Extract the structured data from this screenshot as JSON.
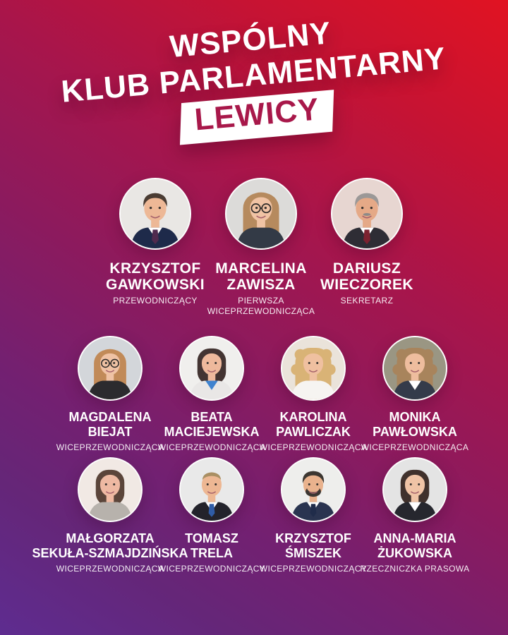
{
  "title": {
    "line1": "WSPÓLNY",
    "line2": "KLUB PARLAMENTARNY",
    "highlight": "LEWICY"
  },
  "colors": {
    "gradient_top_right_red": "#e11322",
    "gradient_mid_crimson": "#a8154b",
    "gradient_bottom_left_violet": "#5e2c90",
    "highlight_box_bg": "#ffffff",
    "highlight_text": "#a8184a",
    "name_text": "#ffffff"
  },
  "members": {
    "rows": [
      [
        {
          "name": "KRZYSZTOF\nGAWKOWSKI",
          "role": "PRZEWODNICZĄCY",
          "avatar": {
            "bg": "#e9e7e4",
            "skin": "#edb896",
            "hair": "#4a3c33",
            "style": "short",
            "top": "#1e2a4a",
            "shirt": "#ffffff",
            "tie": "#502a4e",
            "glasses": false,
            "beard": false,
            "mustache": null
          }
        },
        {
          "name": "MARCELINA\nZAWISZA",
          "role": "PIERWSZA\nWICEPRZEWODNICZĄCA",
          "avatar": {
            "bg": "#dcdbd9",
            "skin": "#f0c3a4",
            "hair": "#b68a5e",
            "style": "long",
            "top": "#333a46",
            "shirt": null,
            "tie": null,
            "glasses": true,
            "beard": false,
            "mustache": null
          }
        },
        {
          "name": "DARIUSZ\nWIECZOREK",
          "role": "SEKRETARZ",
          "avatar": {
            "bg": "#e7d6d1",
            "skin": "#e5a987",
            "hair": "#9b9897",
            "style": "short",
            "top": "#2e2d35",
            "shirt": "#ffffff",
            "tie": "#7c2230",
            "glasses": false,
            "beard": false,
            "mustache": "#8d8a88"
          }
        }
      ],
      [
        {
          "name": "MAGDALENA\nBIEJAT",
          "role": "WICEPRZEWODNICZĄCA",
          "avatar": {
            "bg": "#d3d6da",
            "skin": "#efc2a4",
            "hair": "#c18a58",
            "style": "long",
            "top": "#2b2b2e",
            "shirt": null,
            "tie": null,
            "glasses": true,
            "beard": false,
            "mustache": null
          }
        },
        {
          "name": "BEATA\nMACIEJEWSKA",
          "role": "WICEPRZEWODNICZĄCA",
          "avatar": {
            "bg": "#f0efed",
            "skin": "#eeb99c",
            "hair": "#433432",
            "style": "bob",
            "top": "#e9e7e6",
            "shirt": "#3f83cf",
            "tie": null,
            "glasses": false,
            "beard": false,
            "mustache": null
          }
        },
        {
          "name": "KAROLINA\nPAWLICZAK",
          "role": "WICEPRZEWODNICZĄCA",
          "avatar": {
            "bg": "#eae3da",
            "skin": "#efc0a0",
            "hair": "#d9b376",
            "style": "curly",
            "top": "#f6f4f1",
            "shirt": null,
            "tie": null,
            "glasses": false,
            "beard": false,
            "mustache": null
          }
        },
        {
          "name": "MONIKA\nPAWŁOWSKA",
          "role": "WICEPRZEWODNICZĄCA",
          "avatar": {
            "bg": "#9a9683",
            "skin": "#eebd9e",
            "hair": "#a8845c",
            "style": "curly",
            "top": "#343b4a",
            "shirt": "#ffffff",
            "tie": null,
            "glasses": false,
            "beard": false,
            "mustache": null
          }
        }
      ],
      [
        {
          "name": "MAŁGORZATA\nSEKUŁA-SZMAJDZIŃSKA",
          "role": "WICEPRZEWODNICZĄCA",
          "avatar": {
            "bg": "#f1e9e4",
            "skin": "#eeb9a2",
            "hair": "#5b453a",
            "style": "bob",
            "top": "#b7b2ac",
            "shirt": null,
            "tie": null,
            "glasses": false,
            "beard": false,
            "mustache": null
          }
        },
        {
          "name": "TOMASZ\nTRELA",
          "role": "WICEPRZEWODNICZĄCY",
          "avatar": {
            "bg": "#e9e9e9",
            "skin": "#edb793",
            "hair": "#a98f63",
            "style": "shortThin",
            "top": "#23232b",
            "shirt": "#ffffff",
            "tie": "#2f5ca6",
            "glasses": false,
            "beard": false,
            "mustache": null
          }
        },
        {
          "name": "KRZYSZTOF\nŚMISZEK",
          "role": "WICEPRZEWODNICZĄCY",
          "avatar": {
            "bg": "#eeeeec",
            "skin": "#e9b28d",
            "hair": "#3c3631",
            "style": "short",
            "top": "#2a3450",
            "shirt": "#ffffff",
            "tie": "#202c4a",
            "glasses": false,
            "beard": true,
            "mustache": null
          }
        },
        {
          "name": "ANNA-MARIA\nŻUKOWSKA",
          "role": "RZECZNICZKA PRASOWA",
          "avatar": {
            "bg": "#e4e4e4",
            "skin": "#f0c4a6",
            "hair": "#40312c",
            "style": "bob",
            "top": "#26272e",
            "shirt": "#ffffff",
            "tie": null,
            "glasses": false,
            "beard": false,
            "mustache": null
          }
        }
      ]
    ]
  }
}
